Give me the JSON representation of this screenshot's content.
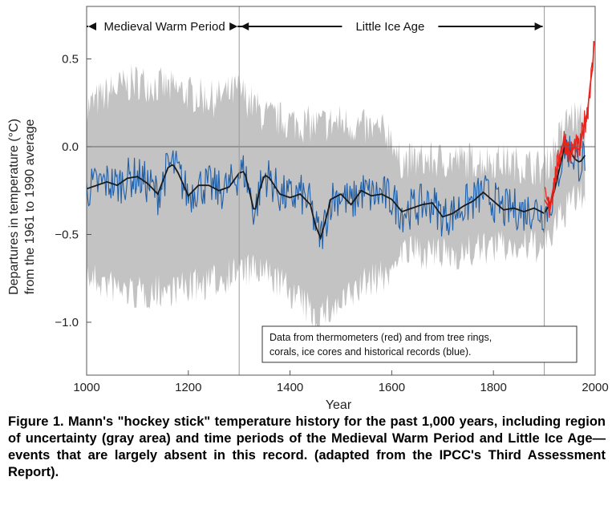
{
  "chart_data": {
    "type": "line",
    "xlabel": "Year",
    "ylabel_line1": "Departures in temperature (°C)",
    "ylabel_line2": "from the 1961 to 1990 average",
    "xlim": [
      1000,
      2000
    ],
    "ylim": [
      -1.3,
      0.8
    ],
    "x_ticks": [
      1000,
      1200,
      1400,
      1600,
      1800,
      2000
    ],
    "y_ticks": [
      0.5,
      0.0,
      -0.5,
      -1.0
    ],
    "y_tick_labels": [
      "0.5",
      "0.0",
      "−0.5",
      "−1.0"
    ],
    "reference_line_y": 0.0,
    "period_boundaries": [
      1300,
      1900
    ],
    "periods": [
      {
        "name": "Medieval Warm Period",
        "start": 1000,
        "end": 1300
      },
      {
        "name": "Little Ice Age",
        "start": 1300,
        "end": 1900
      }
    ],
    "legend_line1": "Data from thermometers (red) and from tree rings,",
    "legend_line2": "corals, ice cores and historical records (blue).",
    "colors": {
      "uncertainty": "#c3c3c3",
      "proxy": "#1f5fa8",
      "thermometer": "#e8231c",
      "smooth": "#1a1a1a",
      "axis": "#555555"
    },
    "series": [
      {
        "name": "smoothed reconstruction",
        "x": [
          1000,
          1020,
          1040,
          1060,
          1080,
          1100,
          1120,
          1140,
          1160,
          1170,
          1180,
          1200,
          1220,
          1240,
          1260,
          1280,
          1300,
          1310,
          1320,
          1330,
          1340,
          1350,
          1360,
          1380,
          1400,
          1420,
          1440,
          1450,
          1460,
          1470,
          1480,
          1500,
          1520,
          1540,
          1560,
          1580,
          1600,
          1620,
          1640,
          1660,
          1680,
          1700,
          1720,
          1740,
          1760,
          1780,
          1800,
          1820,
          1840,
          1860,
          1880,
          1900,
          1910,
          1920,
          1930,
          1940,
          1950,
          1960,
          1970,
          1980
        ],
        "values": [
          -0.24,
          -0.22,
          -0.2,
          -0.22,
          -0.18,
          -0.17,
          -0.21,
          -0.27,
          -0.12,
          -0.1,
          -0.15,
          -0.28,
          -0.22,
          -0.22,
          -0.25,
          -0.23,
          -0.15,
          -0.14,
          -0.25,
          -0.38,
          -0.25,
          -0.16,
          -0.18,
          -0.27,
          -0.29,
          -0.27,
          -0.33,
          -0.45,
          -0.52,
          -0.42,
          -0.3,
          -0.27,
          -0.33,
          -0.25,
          -0.28,
          -0.27,
          -0.3,
          -0.37,
          -0.35,
          -0.33,
          -0.32,
          -0.4,
          -0.38,
          -0.34,
          -0.31,
          -0.26,
          -0.31,
          -0.36,
          -0.35,
          -0.37,
          -0.35,
          -0.38,
          -0.33,
          -0.25,
          -0.12,
          0.0,
          -0.02,
          -0.07,
          -0.09,
          -0.05
        ]
      },
      {
        "name": "uncertainty upper",
        "x": [
          1000,
          1050,
          1100,
          1150,
          1200,
          1250,
          1300,
          1350,
          1400,
          1450,
          1500,
          1550,
          1600,
          1610,
          1650,
          1700,
          1750,
          1800,
          1850,
          1900,
          1950,
          1980
        ],
        "values": [
          0.2,
          0.3,
          0.35,
          0.32,
          0.28,
          0.25,
          0.3,
          0.15,
          0.12,
          0.1,
          0.12,
          0.08,
          0.05,
          -0.1,
          -0.1,
          -0.1,
          -0.1,
          -0.1,
          -0.12,
          -0.15,
          0.15,
          0.12
        ]
      },
      {
        "name": "uncertainty lower",
        "x": [
          1000,
          1050,
          1100,
          1150,
          1200,
          1250,
          1300,
          1350,
          1400,
          1450,
          1500,
          1550,
          1600,
          1610,
          1650,
          1700,
          1750,
          1800,
          1850,
          1900,
          1950,
          1980
        ],
        "values": [
          -0.72,
          -0.78,
          -0.82,
          -0.8,
          -0.78,
          -0.75,
          -0.68,
          -0.7,
          -0.8,
          -0.95,
          -0.88,
          -0.75,
          -0.7,
          -0.58,
          -0.58,
          -0.6,
          -0.58,
          -0.55,
          -0.55,
          -0.55,
          -0.3,
          -0.25
        ]
      },
      {
        "name": "thermometer record",
        "x": [
          1900,
          1910,
          1920,
          1930,
          1940,
          1950,
          1960,
          1970,
          1975,
          1980,
          1985,
          1990,
          1995,
          1998
        ],
        "values": [
          -0.3,
          -0.35,
          -0.2,
          -0.05,
          0.05,
          -0.05,
          0.0,
          -0.02,
          0.08,
          0.15,
          0.2,
          0.35,
          0.45,
          0.6
        ]
      }
    ]
  },
  "caption": "Figure 1. Mann's \"hockey stick\" temperature history for the past 1,000 years, including region of uncertainty (gray area) and time periods of the Medieval Warm Period and Little Ice Age—events that are largely absent in this record. (adapted from the IPCC's Third Assessment Report)."
}
